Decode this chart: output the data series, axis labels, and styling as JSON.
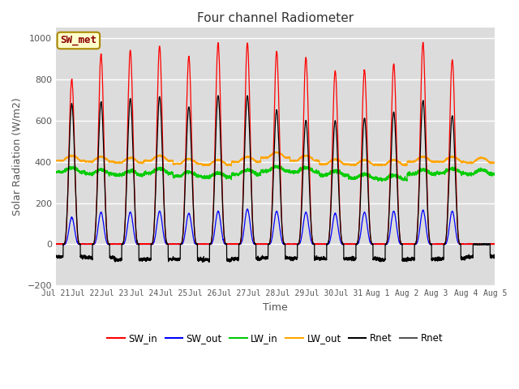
{
  "title": "Four channel Radiometer",
  "xlabel": "Time",
  "ylabel": "Solar Radiation (W/m2)",
  "ylim": [
    -200,
    1050
  ],
  "yticks": [
    -200,
    0,
    200,
    400,
    600,
    800,
    1000
  ],
  "bg_color": "#dcdcdc",
  "fig_bg_color": "#ffffff",
  "text_color": "#555555",
  "SW_in_color": "#ff0000",
  "SW_out_color": "#0000ff",
  "LW_in_color": "#00cc00",
  "LW_out_color": "#ffa500",
  "Rnet_color": "#000000",
  "Rnet2_color": "#555555",
  "legend_label_box": "SW_met",
  "legend_label_box_color": "#ffffcc",
  "legend_label_box_border": "#aa8800",
  "legend_label_box_text": "#8B0000",
  "num_days": 15,
  "xtick_labels": [
    "Jul 21",
    "Jul 22",
    "Jul 23",
    "Jul 24",
    "Jul 25",
    "Jul 26",
    "Jul 27",
    "Jul 28",
    "Jul 29",
    "Jul 30",
    "Jul 31",
    "Aug 1",
    "Aug 2",
    "Aug 3",
    "Aug 4",
    "Aug 5"
  ],
  "SW_in_peaks": [
    800,
    920,
    940,
    960,
    910,
    975,
    975,
    935,
    905,
    840,
    845,
    875,
    975,
    895,
    0
  ],
  "SW_out_peaks": [
    130,
    155,
    155,
    160,
    150,
    160,
    170,
    160,
    155,
    150,
    155,
    160,
    165,
    160,
    0
  ],
  "LW_in_base": [
    350,
    340,
    335,
    345,
    330,
    325,
    340,
    355,
    350,
    335,
    320,
    315,
    340,
    345,
    340
  ],
  "LW_out_base": [
    405,
    400,
    395,
    405,
    390,
    385,
    400,
    420,
    405,
    388,
    385,
    385,
    400,
    400,
    395
  ],
  "Rnet_peaks": [
    680,
    690,
    705,
    715,
    665,
    720,
    720,
    650,
    600,
    598,
    610,
    640,
    695,
    622,
    0
  ],
  "Rnet_night": [
    -60,
    -65,
    -75,
    -72,
    -72,
    -75,
    -70,
    -65,
    -68,
    -70,
    -70,
    -75,
    -72,
    -70,
    -60
  ]
}
